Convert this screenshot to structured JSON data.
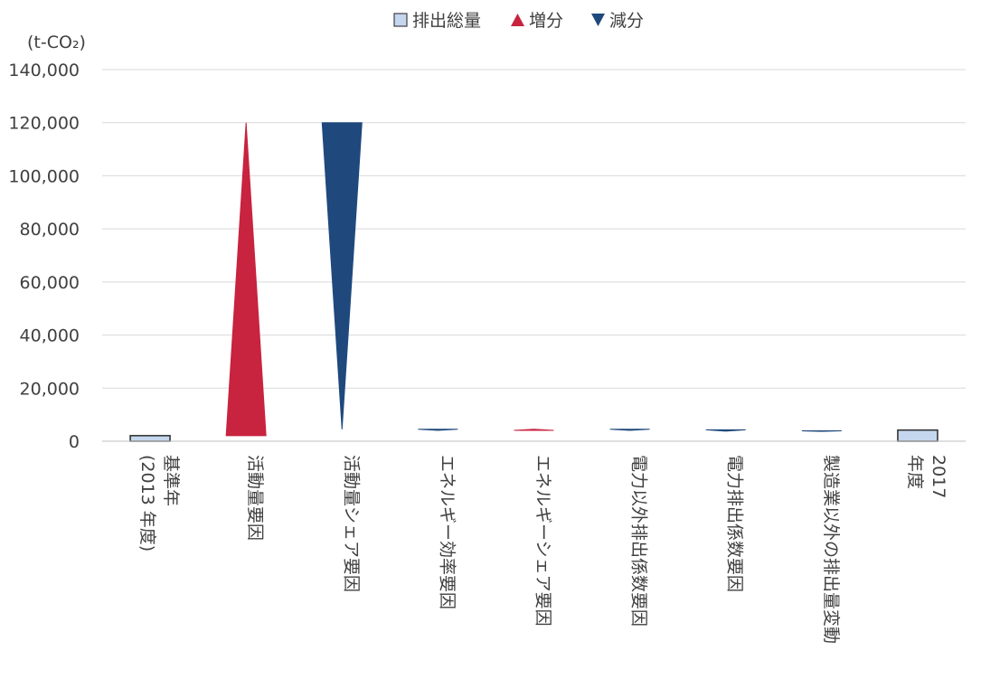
{
  "chart_data": {
    "type": "bar",
    "unit_label": "(t-CO₂)",
    "ylim": [
      0,
      140000
    ],
    "y_ticks": [
      0,
      20000,
      40000,
      60000,
      80000,
      100000,
      120000,
      140000
    ],
    "y_tick_labels": [
      "0",
      "20,000",
      "40,000",
      "60,000",
      "80,000",
      "100,000",
      "120,000",
      "140,000"
    ],
    "grid": true,
    "legend_position": "top-center",
    "legend": [
      {
        "name": "排出総量",
        "symbol": "□",
        "marker": "square",
        "color": "#c5d7ee"
      },
      {
        "name": "増分",
        "symbol": "▲",
        "marker": "triangle-up",
        "color": "#c8233f"
      },
      {
        "name": "減分",
        "symbol": "▼",
        "marker": "triangle-down",
        "color": "#1f497d"
      }
    ],
    "categories": [
      {
        "lines": [
          "基準年",
          "(2013 年度)"
        ]
      },
      {
        "lines": [
          "活動量要因"
        ]
      },
      {
        "lines": [
          "活動量シェア要因"
        ]
      },
      {
        "lines": [
          "エネルギー効率要因"
        ]
      },
      {
        "lines": [
          "エネルギーシェア要因"
        ]
      },
      {
        "lines": [
          "電力以外排出係数要因"
        ]
      },
      {
        "lines": [
          "電力排出係数要因"
        ]
      },
      {
        "lines": [
          "製造業以外の排出量変動"
        ]
      },
      {
        "lines": [
          "2017",
          "年度"
        ]
      }
    ],
    "bars": [
      {
        "kind": "total",
        "value": 2100
      },
      {
        "kind": "increase",
        "from": 2100,
        "to": 120000
      },
      {
        "kind": "decrease",
        "from": 120000,
        "to": 4500
      },
      {
        "kind": "decrease",
        "from": 4500,
        "to": 4100
      },
      {
        "kind": "increase",
        "from": 4100,
        "to": 4500
      },
      {
        "kind": "decrease",
        "from": 4500,
        "to": 4100
      },
      {
        "kind": "decrease",
        "from": 4300,
        "to": 3800
      },
      {
        "kind": "decrease",
        "from": 3900,
        "to": 3700
      },
      {
        "kind": "total",
        "value": 4200
      }
    ],
    "colors": {
      "total_fill": "#c5d7ee",
      "total_stroke": "#2b2b2b",
      "increase": "#c8233f",
      "decrease": "#1f497d",
      "grid": "#d9d9d9",
      "axis": "#bfbfbf"
    }
  }
}
